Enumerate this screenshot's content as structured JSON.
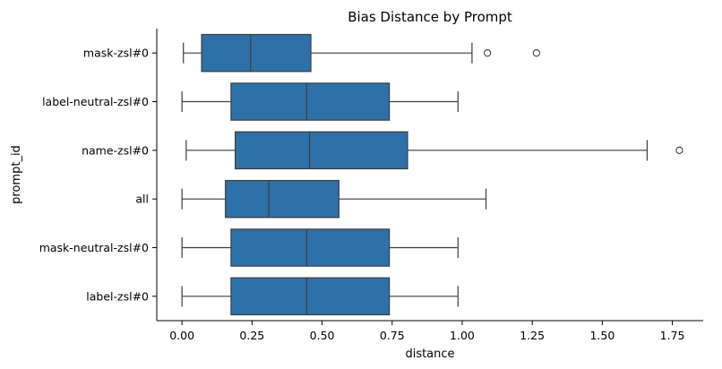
{
  "chart_data": {
    "type": "boxplot",
    "orientation": "horizontal",
    "title": "Bias Distance by Prompt",
    "xlabel": "distance",
    "ylabel": "prompt_id",
    "xlim": [
      -0.09,
      1.86
    ],
    "xticks": [
      "0.00",
      "0.25",
      "0.50",
      "0.75",
      "1.00",
      "1.25",
      "1.50",
      "1.75"
    ],
    "xtick_values": [
      0.0,
      0.25,
      0.5,
      0.75,
      1.0,
      1.25,
      1.5,
      1.75
    ],
    "grid": false,
    "box_color": "#2e71a8",
    "line_color": "#3d3d3d",
    "categories": [
      {
        "label": "mask-zsl#0",
        "whisker_low": 0.005,
        "q1": 0.07,
        "median": 0.245,
        "q3": 0.46,
        "whisker_high": 1.035,
        "outliers": [
          1.09,
          1.265
        ]
      },
      {
        "label": "label-neutral-zsl#0",
        "whisker_low": 0.0,
        "q1": 0.175,
        "median": 0.445,
        "q3": 0.74,
        "whisker_high": 0.985,
        "outliers": []
      },
      {
        "label": "name-zsl#0",
        "whisker_low": 0.015,
        "q1": 0.19,
        "median": 0.455,
        "q3": 0.805,
        "whisker_high": 1.66,
        "outliers": [
          1.775
        ]
      },
      {
        "label": "all",
        "whisker_low": 0.0,
        "q1": 0.155,
        "median": 0.31,
        "q3": 0.56,
        "whisker_high": 1.085,
        "outliers": []
      },
      {
        "label": "mask-neutral-zsl#0",
        "whisker_low": 0.0,
        "q1": 0.175,
        "median": 0.445,
        "q3": 0.74,
        "whisker_high": 0.985,
        "outliers": []
      },
      {
        "label": "label-zsl#0",
        "whisker_low": 0.0,
        "q1": 0.175,
        "median": 0.445,
        "q3": 0.74,
        "whisker_high": 0.985,
        "outliers": []
      }
    ]
  }
}
